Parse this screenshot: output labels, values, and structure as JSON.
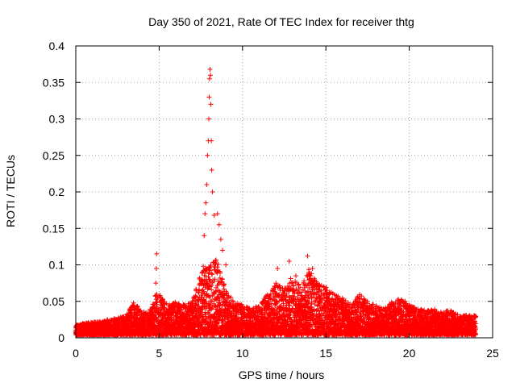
{
  "chart_data": {
    "type": "scatter",
    "title": "Day 350 of 2021, Rate Of TEC Index for receiver thtg",
    "xlabel": "GPS time / hours",
    "ylabel": "ROTI / TECUs",
    "xlim": [
      0,
      25
    ],
    "ylim": [
      0,
      0.4
    ],
    "x_ticks": [
      0,
      5,
      10,
      15,
      20,
      25
    ],
    "y_ticks": [
      0,
      0.05,
      0.1,
      0.15,
      0.2,
      0.25,
      0.3,
      0.35,
      0.4
    ],
    "grid": true,
    "marker": "+",
    "color": "#ff0000",
    "x_range_of_data": [
      0,
      24
    ],
    "envelope": [
      [
        0,
        0.018
      ],
      [
        0.5,
        0.02
      ],
      [
        1,
        0.022
      ],
      [
        1.5,
        0.024
      ],
      [
        2,
        0.025
      ],
      [
        2.5,
        0.027
      ],
      [
        3,
        0.03
      ],
      [
        3.5,
        0.05
      ],
      [
        4,
        0.035
      ],
      [
        4.5,
        0.04
      ],
      [
        4.8,
        0.06
      ],
      [
        5,
        0.065
      ],
      [
        5.5,
        0.045
      ],
      [
        6,
        0.05
      ],
      [
        6.5,
        0.045
      ],
      [
        7,
        0.05
      ],
      [
        7.5,
        0.09
      ],
      [
        8,
        0.1
      ],
      [
        8.5,
        0.11
      ],
      [
        9,
        0.065
      ],
      [
        9.5,
        0.05
      ],
      [
        10,
        0.045
      ],
      [
        10.5,
        0.04
      ],
      [
        11,
        0.045
      ],
      [
        11.5,
        0.06
      ],
      [
        12,
        0.075
      ],
      [
        12.5,
        0.07
      ],
      [
        13,
        0.085
      ],
      [
        13.5,
        0.07
      ],
      [
        14,
        0.095
      ],
      [
        14.5,
        0.075
      ],
      [
        15,
        0.07
      ],
      [
        15.5,
        0.06
      ],
      [
        16,
        0.055
      ],
      [
        16.5,
        0.045
      ],
      [
        17,
        0.06
      ],
      [
        17.5,
        0.05
      ],
      [
        18,
        0.045
      ],
      [
        18.5,
        0.04
      ],
      [
        19,
        0.05
      ],
      [
        19.5,
        0.055
      ],
      [
        20,
        0.045
      ],
      [
        20.5,
        0.04
      ],
      [
        21,
        0.038
      ],
      [
        21.5,
        0.04
      ],
      [
        22,
        0.035
      ],
      [
        22.5,
        0.04
      ],
      [
        23,
        0.03
      ],
      [
        23.5,
        0.032
      ],
      [
        24,
        0.03
      ]
    ],
    "highlights": [
      [
        4.85,
        0.115
      ],
      [
        4.83,
        0.095
      ],
      [
        4.8,
        0.075
      ],
      [
        7.65,
        0.098
      ],
      [
        7.7,
        0.14
      ],
      [
        7.75,
        0.17
      ],
      [
        7.8,
        0.185
      ],
      [
        7.85,
        0.21
      ],
      [
        7.9,
        0.25
      ],
      [
        7.95,
        0.27
      ],
      [
        7.98,
        0.3
      ],
      [
        8.0,
        0.33
      ],
      [
        8.02,
        0.355
      ],
      [
        8.05,
        0.368
      ],
      [
        8.08,
        0.36
      ],
      [
        8.1,
        0.32
      ],
      [
        8.13,
        0.27
      ],
      [
        8.15,
        0.23
      ],
      [
        8.2,
        0.2
      ],
      [
        8.3,
        0.168
      ],
      [
        8.5,
        0.17
      ],
      [
        8.6,
        0.155
      ],
      [
        8.7,
        0.135
      ],
      [
        8.8,
        0.12
      ],
      [
        9.0,
        0.1
      ],
      [
        7.6,
        0.09
      ],
      [
        7.55,
        0.08
      ],
      [
        12.1,
        0.095
      ],
      [
        12.8,
        0.105
      ],
      [
        13.2,
        0.085
      ],
      [
        13.9,
        0.112
      ],
      [
        14.2,
        0.095
      ]
    ]
  }
}
